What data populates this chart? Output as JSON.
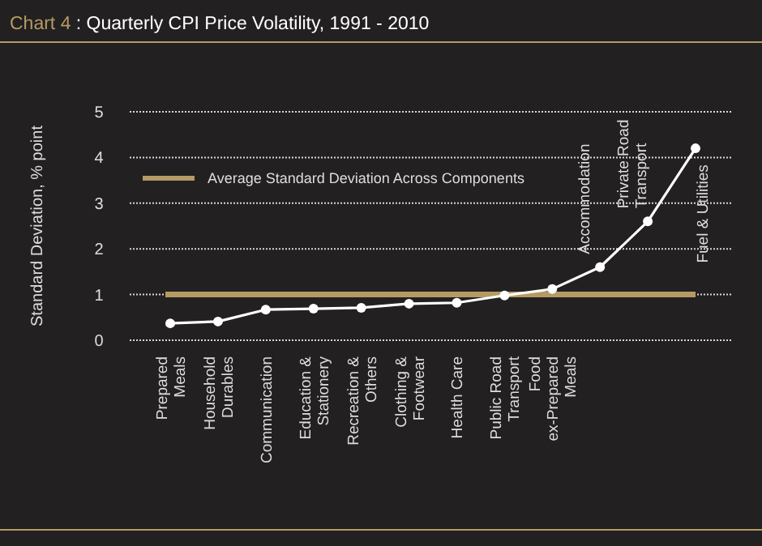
{
  "chart_data": {
    "type": "line",
    "title": "Chart 4 : Quarterly CPI Price Volatility, 1991 - 2010",
    "ylabel": "Standard Deviation, % point",
    "categories": [
      "Prepared Meals",
      "Household Durables",
      "Communication",
      "Education & Stationery",
      "Recreation & Others",
      "Clothing & Footwear",
      "Health Care",
      "Public Road Transport",
      "Food ex-Prepared Meals",
      "Accommodation",
      "Private Road Transport",
      "Fuel & Utilities"
    ],
    "series": [
      {
        "color": "#ffffff",
        "values": [
          0.37,
          0.41,
          0.67,
          0.69,
          0.71,
          0.8,
          0.82,
          0.98,
          1.12,
          1.6,
          2.6,
          4.2
        ]
      }
    ],
    "ylim": [
      0,
      5
    ],
    "yticks": [
      0,
      1,
      2,
      3,
      4,
      5
    ],
    "grid": "y",
    "marker": "circle",
    "line_style": "solid",
    "legend": "top left",
    "ref_lines": [
      {
        "axis": "y",
        "value": 1,
        "label": "Average Standard Deviation Across Components",
        "color": "#b59a63"
      }
    ]
  }
}
